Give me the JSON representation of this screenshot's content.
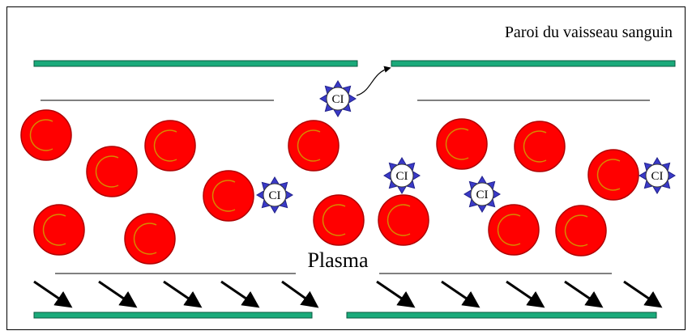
{
  "header": {
    "title": "Paroi du vaisseau sanguin"
  },
  "plasma_label": "Plasma",
  "complexes": [
    {
      "label": "CI"
    },
    {
      "label": "CI"
    },
    {
      "label": "CI"
    },
    {
      "label": "CI"
    },
    {
      "label": "CI"
    }
  ]
}
